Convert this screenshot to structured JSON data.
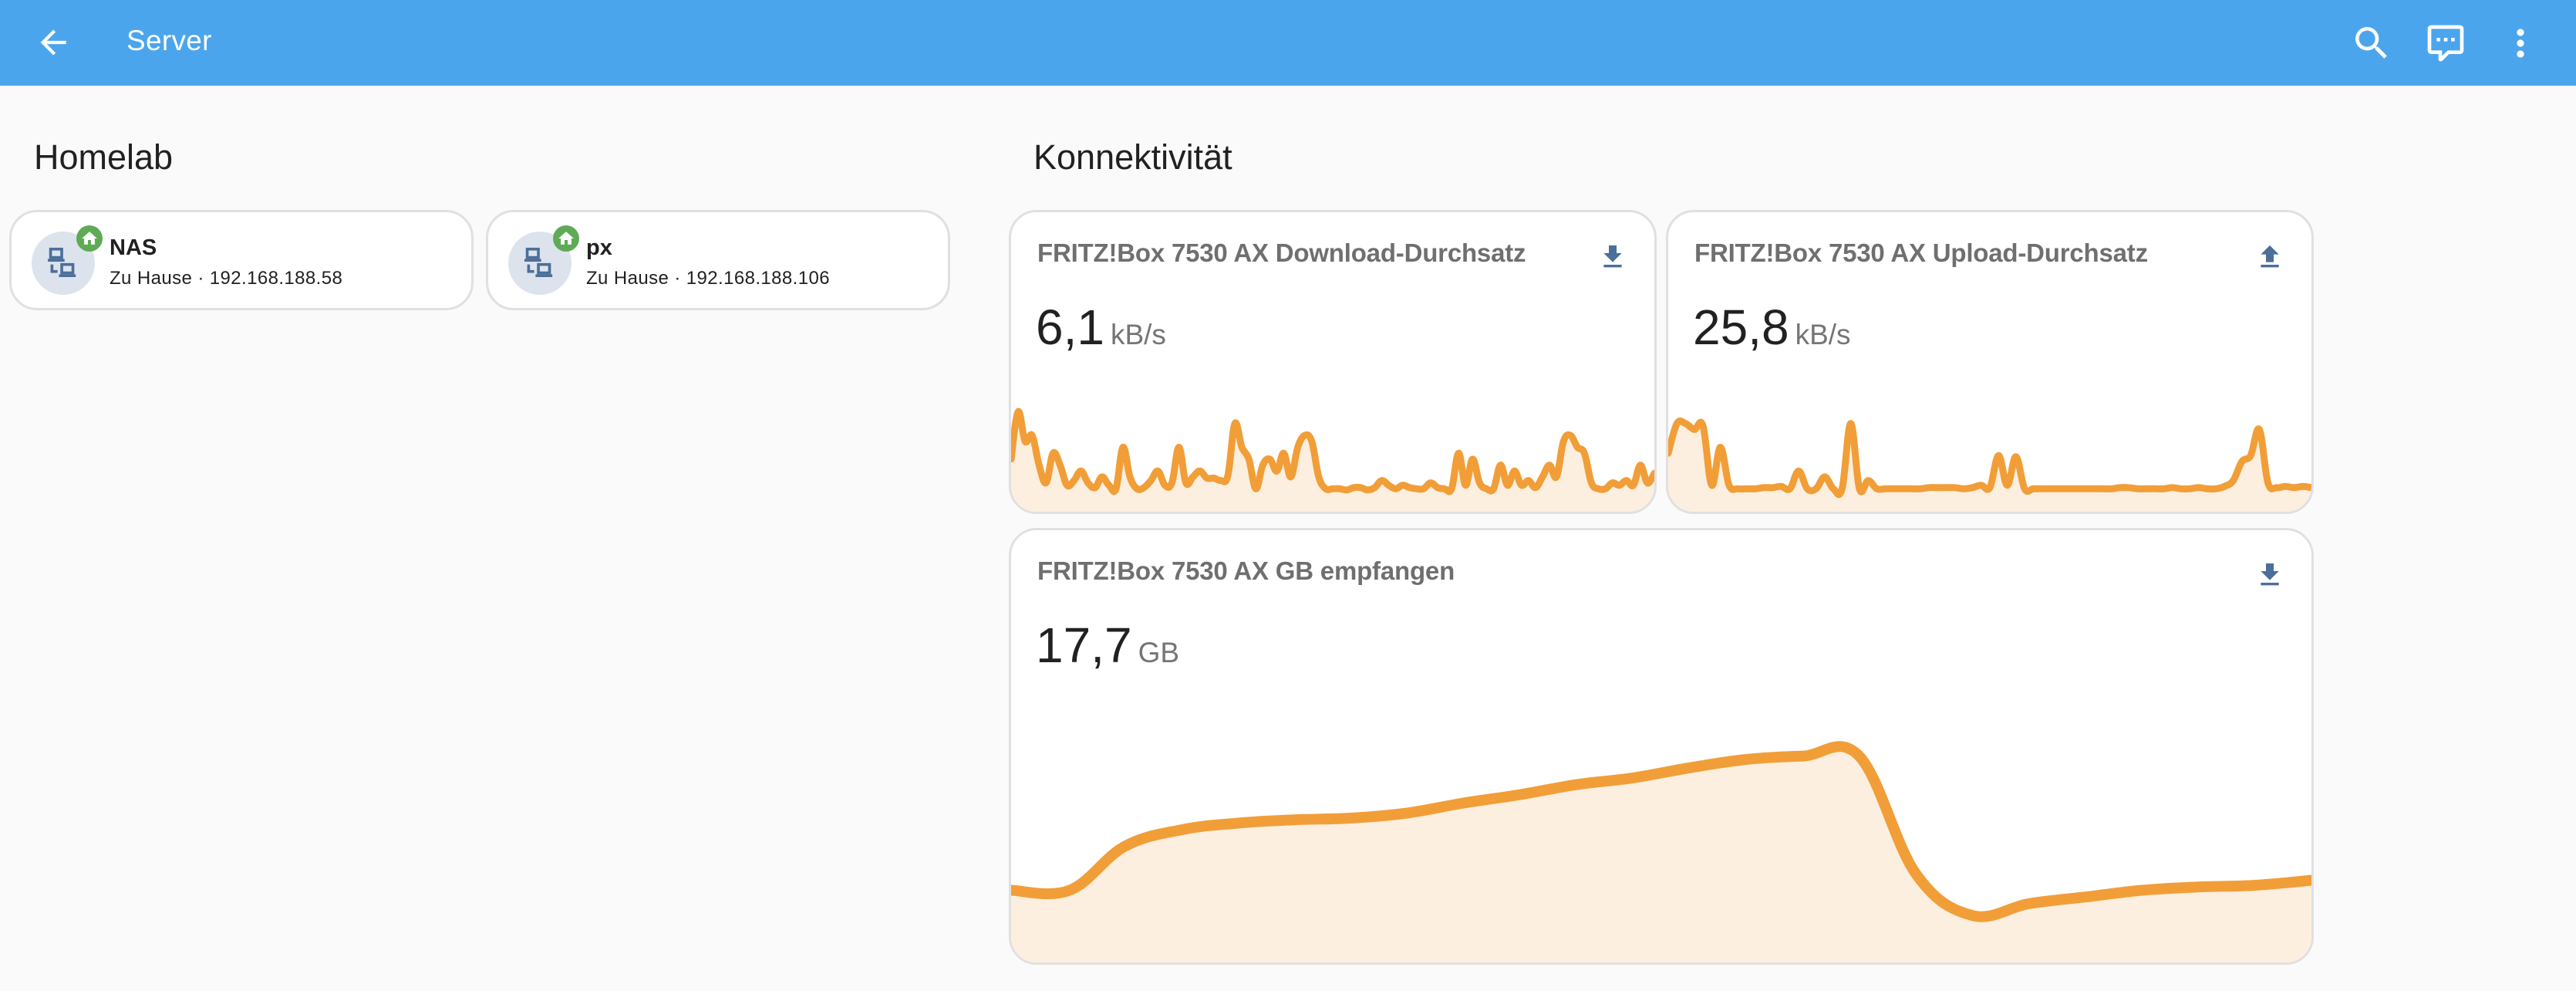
{
  "header": {
    "title": "Server",
    "back_icon": "arrow-left-icon",
    "actions": [
      {
        "name": "search",
        "icon": "magnify-icon"
      },
      {
        "name": "assist",
        "icon": "comment-processing-icon"
      },
      {
        "name": "menu",
        "icon": "dots-vertical-icon"
      }
    ]
  },
  "colors": {
    "header": "#4ba5ec",
    "accent": "#f19e38",
    "fill": "#fdefdf",
    "icon": "#4b6f9a",
    "badge": "#5faa55"
  },
  "homelab": {
    "title": "Homelab",
    "devices": [
      {
        "name": "NAS",
        "subtitle": "Zu Hause · 192.168.188.58",
        "icon": "lan-icon",
        "badge_icon": "home-icon"
      },
      {
        "name": "px",
        "subtitle": "Zu Hause · 192.168.188.106",
        "icon": "lan-icon",
        "badge_icon": "home-icon"
      }
    ]
  },
  "connectivity": {
    "title": "Konnektivität",
    "sensors": [
      {
        "label": "FRITZ!Box 7530 AX Download-Durchsatz",
        "value": "6,1",
        "unit": "kB/s",
        "icon": "download-icon"
      },
      {
        "label": "FRITZ!Box 7530 AX Upload-Durchsatz",
        "value": "25,8",
        "unit": "kB/s",
        "icon": "upload-icon"
      },
      {
        "label": "FRITZ!Box 7530 AX GB empfangen",
        "value": "17,7",
        "unit": "GB",
        "icon": "download-icon"
      }
    ]
  },
  "chart_data": [
    {
      "type": "area",
      "title": "FRITZ!Box 7530 AX Download-Durchsatz",
      "ylabel": "kB/s",
      "values": [
        30,
        70,
        45,
        50,
        25,
        10,
        35,
        25,
        8,
        12,
        20,
        10,
        6,
        15,
        8,
        5,
        40,
        15,
        5,
        6,
        12,
        20,
        8,
        10,
        40,
        10,
        15,
        20,
        14,
        14,
        12,
        16,
        60,
        40,
        30,
        5,
        25,
        30,
        20,
        35,
        15,
        40,
        50,
        45,
        15,
        5,
        5,
        5,
        4,
        6,
        6,
        4,
        6,
        12,
        8,
        5,
        8,
        6,
        5,
        5,
        10,
        6,
        5,
        5,
        35,
        8,
        30,
        10,
        5,
        5,
        25,
        8,
        20,
        8,
        12,
        6,
        15,
        25,
        15,
        45,
        50,
        40,
        35,
        10,
        5,
        5,
        10,
        8,
        12,
        8,
        25,
        10,
        18
      ]
    },
    {
      "type": "area",
      "title": "FRITZ!Box 7530 AX Upload-Durchsatz",
      "ylabel": "kB/s",
      "values": [
        35,
        60,
        60,
        55,
        58,
        8,
        40,
        8,
        5,
        5,
        5,
        6,
        6,
        7,
        5,
        20,
        5,
        5,
        15,
        5,
        5,
        60,
        5,
        12,
        5,
        5,
        5,
        5,
        5,
        5,
        6,
        6,
        6,
        6,
        5,
        6,
        8,
        6,
        33,
        8,
        32,
        5,
        5,
        5,
        5,
        5,
        5,
        5,
        5,
        5,
        5,
        5,
        6,
        6,
        5,
        5,
        5,
        5,
        6,
        5,
        5,
        6,
        5,
        5,
        7,
        12,
        28,
        33,
        55,
        10,
        6,
        7,
        6,
        7,
        6
      ]
    },
    {
      "type": "area",
      "title": "FRITZ!Box 7530 AX GB empfangen",
      "ylabel": "GB",
      "values": [
        2.0,
        2.0,
        4.6,
        5.6,
        6.0,
        6.2,
        6.3,
        6.6,
        7.2,
        7.7,
        8.3,
        8.7,
        9.3,
        9.8,
        10.0,
        10.0,
        3.0,
        0.5,
        1.2,
        1.6,
        2.0,
        2.2,
        2.3,
        2.6
      ]
    }
  ]
}
